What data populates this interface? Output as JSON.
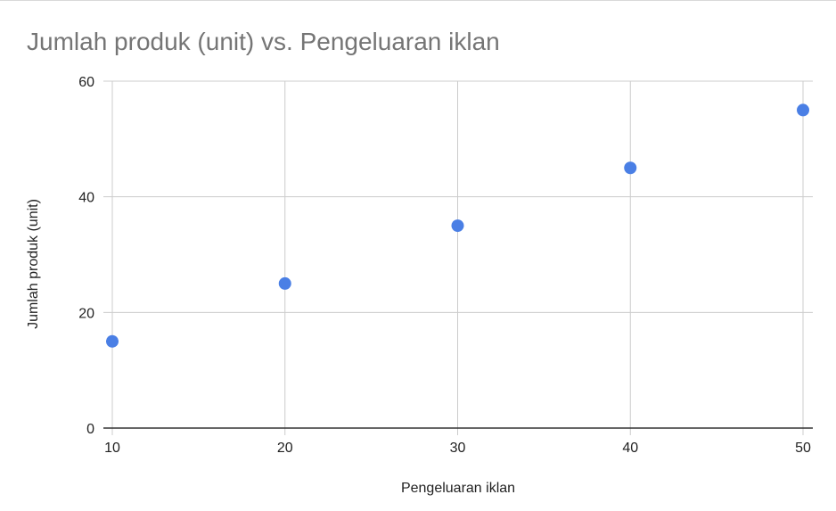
{
  "chart_data": {
    "type": "scatter",
    "title": "Jumlah produk (unit) vs. Pengeluaran iklan",
    "xlabel": "Pengeluaran iklan",
    "ylabel": "Jumlah produk (unit)",
    "xlim": [
      10,
      50
    ],
    "ylim": [
      0,
      60
    ],
    "x_ticks": [
      "10",
      "20",
      "30",
      "40",
      "50"
    ],
    "y_ticks": [
      "0",
      "20",
      "40",
      "60"
    ],
    "grid": true,
    "legend": "none",
    "series": [
      {
        "color": "#4a7fe5",
        "points": [
          {
            "x": 10,
            "y": 15
          },
          {
            "x": 20,
            "y": 25
          },
          {
            "x": 30,
            "y": 35
          },
          {
            "x": 40,
            "y": 45
          },
          {
            "x": 50,
            "y": 55
          }
        ]
      }
    ]
  }
}
